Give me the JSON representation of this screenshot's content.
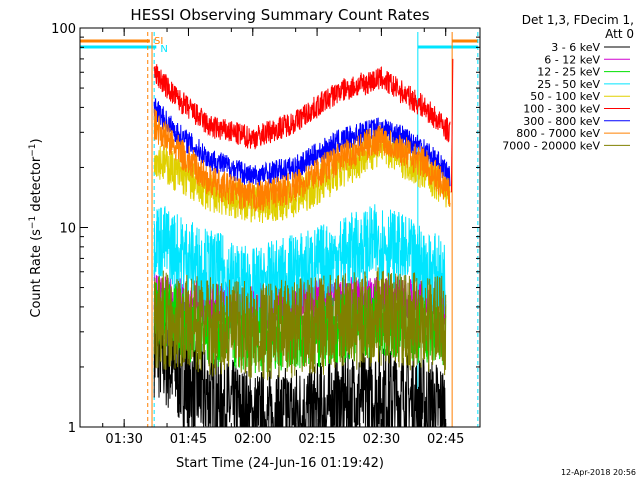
{
  "chart_data": {
    "type": "line",
    "title": "HESSI Observing Summary Count Rates",
    "xlabel": "Start Time (24-Jun-16 01:19:42)",
    "ylabel": "Count Rate (s⁻¹ detector⁻¹)",
    "yscale": "log",
    "ylim": [
      1,
      100
    ],
    "xlim": [
      "01:19:42",
      "02:53:00"
    ],
    "x_ticks": [
      "01:30",
      "01:45",
      "02:00",
      "02:15",
      "02:30",
      "02:45"
    ],
    "y_ticks": [
      "1",
      "10",
      "100"
    ],
    "legend_header": [
      "Det 1,3, FDecim 1,",
      "Att 0"
    ],
    "timestamp": "12-Apr-2018 20:56",
    "markers": [
      {
        "label": "SI",
        "color": "#ff8000"
      },
      {
        "label": "N",
        "color": "#00e5ff"
      }
    ],
    "series": [
      {
        "name": "3 - 6 keV",
        "color": "#000000",
        "x": [
          "01:37",
          "01:45",
          "02:00",
          "02:15",
          "02:30",
          "02:45"
        ],
        "values": [
          2.5,
          1.6,
          1.1,
          1.2,
          1.5,
          1.2
        ]
      },
      {
        "name": "6 - 12 keV",
        "color": "#d000d0",
        "x": [
          "01:37",
          "01:45",
          "02:00",
          "02:15",
          "02:30",
          "02:45"
        ],
        "values": [
          4.5,
          4.2,
          4.0,
          4.2,
          4.4,
          4.2
        ]
      },
      {
        "name": "12 - 25 keV",
        "color": "#00e000",
        "x": [
          "01:37",
          "01:45",
          "02:00",
          "02:15",
          "02:30",
          "02:45"
        ],
        "values": [
          4.0,
          3.2,
          2.8,
          3.0,
          3.4,
          3.0
        ]
      },
      {
        "name": "25 - 50 keV",
        "color": "#00e5ff",
        "x": [
          "01:37",
          "01:45",
          "02:00",
          "02:15",
          "02:30",
          "02:45"
        ],
        "values": [
          9.0,
          7.0,
          5.0,
          6.5,
          8.5,
          5.5
        ]
      },
      {
        "name": "50 - 100 keV",
        "color": "#e0d000",
        "x": [
          "01:37",
          "01:42",
          "01:50",
          "02:00",
          "02:10",
          "02:20",
          "02:30",
          "02:40",
          "02:46"
        ],
        "values": [
          23,
          19,
          15,
          13,
          14,
          19,
          26,
          19,
          15
        ]
      },
      {
        "name": "100 - 300 keV",
        "color": "#ff0000",
        "x": [
          "01:37",
          "01:42",
          "01:50",
          "02:00",
          "02:10",
          "02:20",
          "02:30",
          "02:40",
          "02:46"
        ],
        "values": [
          60,
          45,
          32,
          28,
          34,
          48,
          56,
          40,
          30
        ]
      },
      {
        "name": "300 - 800 keV",
        "color": "#0000ff",
        "x": [
          "01:37",
          "01:42",
          "01:50",
          "02:00",
          "02:10",
          "02:20",
          "02:30",
          "02:40",
          "02:46"
        ],
        "values": [
          40,
          30,
          22,
          18,
          20,
          27,
          32,
          25,
          18
        ]
      },
      {
        "name": "800 - 7000 keV",
        "color": "#ff8000",
        "x": [
          "01:37",
          "01:42",
          "01:50",
          "02:00",
          "02:10",
          "02:20",
          "02:30",
          "02:40",
          "02:46"
        ],
        "values": [
          33,
          25,
          17,
          14,
          16,
          22,
          28,
          21,
          15
        ]
      },
      {
        "name": "7000 - 20000 keV",
        "color": "#808000",
        "x": [
          "01:37",
          "01:45",
          "02:00",
          "02:15",
          "02:30",
          "02:45"
        ],
        "values": [
          3.5,
          3.3,
          3.0,
          3.2,
          3.6,
          3.2
        ]
      }
    ]
  }
}
